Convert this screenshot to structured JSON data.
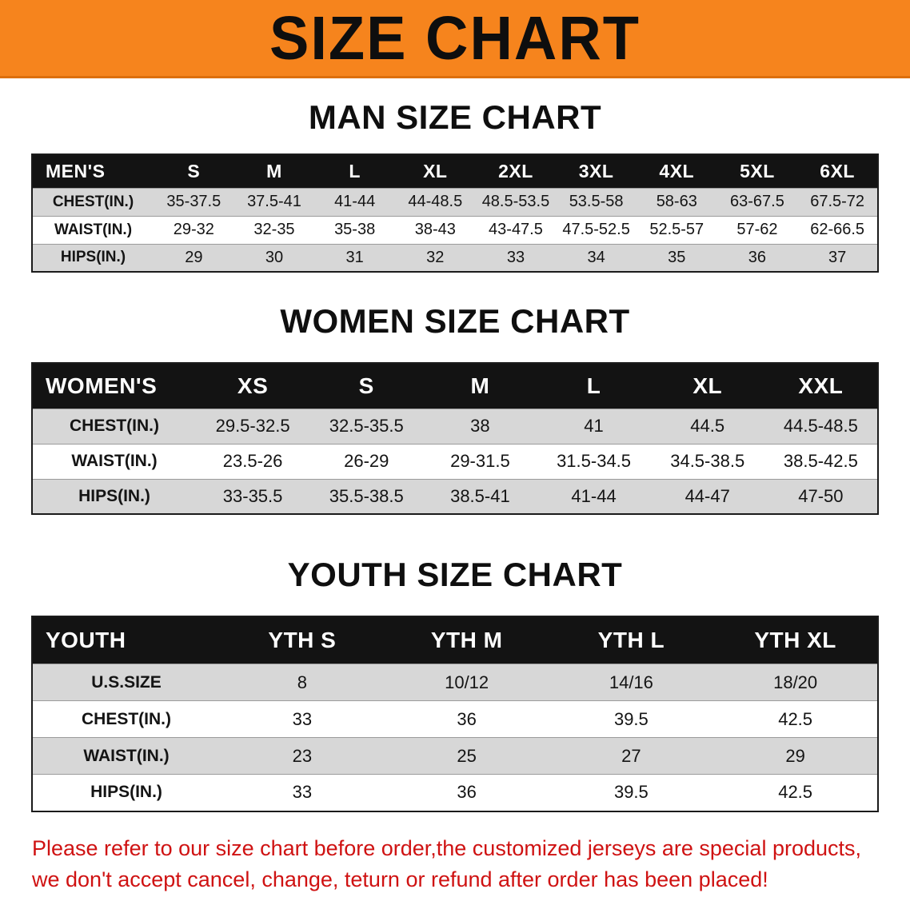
{
  "banner": {
    "title": "SIZE CHART"
  },
  "colors": {
    "banner_bg": "#F6841D",
    "table_header_bg": "#131313",
    "row_alt_bg": "#D7D7D7",
    "disclaimer_text": "#CF1212"
  },
  "sections": [
    {
      "id": "men",
      "heading": "MAN SIZE CHART",
      "table": {
        "header": [
          "MEN'S",
          "S",
          "M",
          "L",
          "XL",
          "2XL",
          "3XL",
          "4XL",
          "5XL",
          "6XL"
        ],
        "rows": [
          [
            "CHEST(IN.)",
            "35-37.5",
            "37.5-41",
            "41-44",
            "44-48.5",
            "48.5-53.5",
            "53.5-58",
            "58-63",
            "63-67.5",
            "67.5-72"
          ],
          [
            "WAIST(IN.)",
            "29-32",
            "32-35",
            "35-38",
            "38-43",
            "43-47.5",
            "47.5-52.5",
            "52.5-57",
            "57-62",
            "62-66.5"
          ],
          [
            "HIPS(IN.)",
            "29",
            "30",
            "31",
            "32",
            "33",
            "34",
            "35",
            "36",
            "37"
          ]
        ]
      }
    },
    {
      "id": "women",
      "heading": "WOMEN SIZE CHART",
      "table": {
        "header": [
          "WOMEN'S",
          "XS",
          "S",
          "M",
          "L",
          "XL",
          "XXL"
        ],
        "rows": [
          [
            "CHEST(IN.)",
            "29.5-32.5",
            "32.5-35.5",
            "38",
            "41",
            "44.5",
            "44.5-48.5"
          ],
          [
            "WAIST(IN.)",
            "23.5-26",
            "26-29",
            "29-31.5",
            "31.5-34.5",
            "34.5-38.5",
            "38.5-42.5"
          ],
          [
            "HIPS(IN.)",
            "33-35.5",
            "35.5-38.5",
            "38.5-41",
            "41-44",
            "44-47",
            "47-50"
          ]
        ]
      }
    },
    {
      "id": "youth",
      "heading": "YOUTH SIZE CHART",
      "table": {
        "header": [
          "YOUTH",
          "YTH S",
          "YTH M",
          "YTH L",
          "YTH XL"
        ],
        "rows": [
          [
            "U.S.SIZE",
            "8",
            "10/12",
            "14/16",
            "18/20"
          ],
          [
            "CHEST(IN.)",
            "33",
            "36",
            "39.5",
            "42.5"
          ],
          [
            "WAIST(IN.)",
            "23",
            "25",
            "27",
            "29"
          ],
          [
            "HIPS(IN.)",
            "33",
            "36",
            "39.5",
            "42.5"
          ]
        ]
      }
    }
  ],
  "disclaimer": {
    "line1": "Please refer to our size chart before order,the customized jerseys are special products,",
    "line2": "we don't accept cancel, change, teturn or refund after order has been placed!"
  }
}
